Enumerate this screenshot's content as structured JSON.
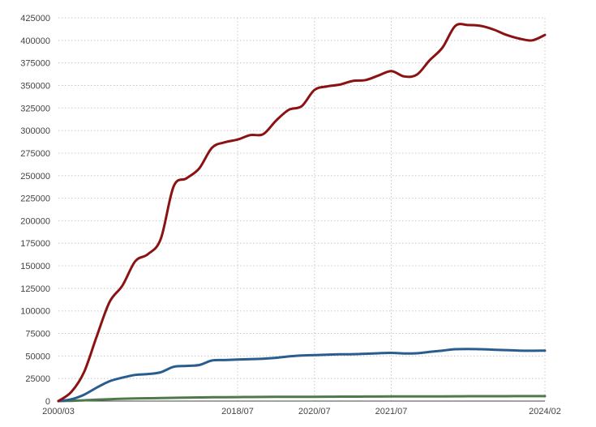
{
  "chart_data": {
    "type": "line",
    "title": "",
    "xlabel": "",
    "ylabel": "",
    "ylim": [
      0,
      425000
    ],
    "grid": true,
    "legend": "none",
    "y_ticks": [
      "0",
      "25000",
      "50000",
      "75000",
      "100000",
      "125000",
      "150000",
      "175000",
      "200000",
      "225000",
      "250000",
      "275000",
      "300000",
      "325000",
      "350000",
      "375000",
      "400000",
      "425000"
    ],
    "x_tick_labels": [
      "2000/03",
      "2018/07",
      "2020/07",
      "2021/07",
      "2024/02"
    ],
    "x": [
      "2000/03",
      "2002/01",
      "2003/06",
      "2004/11",
      "2006/04",
      "2007/09",
      "2009/02",
      "2010/07",
      "2011/12",
      "2013/05",
      "2014/10",
      "2016/03",
      "2017/08",
      "2018/01",
      "2018/07",
      "2018/11",
      "2019/03",
      "2019/07",
      "2019/11",
      "2020/03",
      "2020/07",
      "2020/09",
      "2020/11",
      "2021/01",
      "2021/03",
      "2021/05",
      "2021/07",
      "2021/09",
      "2021/11",
      "2022/01",
      "2022/03",
      "2022/05",
      "2022/07",
      "2022/10",
      "2023/01",
      "2023/04",
      "2023/07",
      "2023/10",
      "2024/02"
    ],
    "series": [
      {
        "color": "#8b1212",
        "values": [
          0,
          10000,
          32000,
          72000,
          110000,
          128000,
          155000,
          163000,
          180000,
          238000,
          247000,
          258000,
          281000,
          287000,
          290000,
          295000,
          296000,
          311000,
          323000,
          327000,
          345000,
          349000,
          351000,
          355000,
          356000,
          361000,
          366000,
          360000,
          362000,
          378000,
          392000,
          416000,
          417000,
          416000,
          412000,
          406000,
          402000,
          400000,
          406000
        ]
      },
      {
        "color": "#2a5d8f",
        "values": [
          0,
          2000,
          7000,
          15000,
          22000,
          26000,
          29000,
          30000,
          32000,
          38000,
          39000,
          40000,
          45000,
          45500,
          46000,
          46500,
          47000,
          48000,
          49500,
          50500,
          51000,
          51500,
          51800,
          52000,
          52500,
          53000,
          53500,
          52800,
          53000,
          54500,
          56000,
          57500,
          57800,
          57500,
          57000,
          56500,
          56000,
          55800,
          56000
        ]
      },
      {
        "color": "#4d7a48",
        "values": [
          0,
          300,
          800,
          1500,
          2100,
          2600,
          2900,
          3100,
          3300,
          3600,
          3800,
          4000,
          4200,
          4300,
          4400,
          4500,
          4600,
          4650,
          4700,
          4750,
          4800,
          4850,
          4900,
          4950,
          5000,
          5050,
          5100,
          5100,
          5150,
          5200,
          5250,
          5300,
          5350,
          5350,
          5400,
          5400,
          5450,
          5450,
          5500
        ]
      }
    ]
  }
}
